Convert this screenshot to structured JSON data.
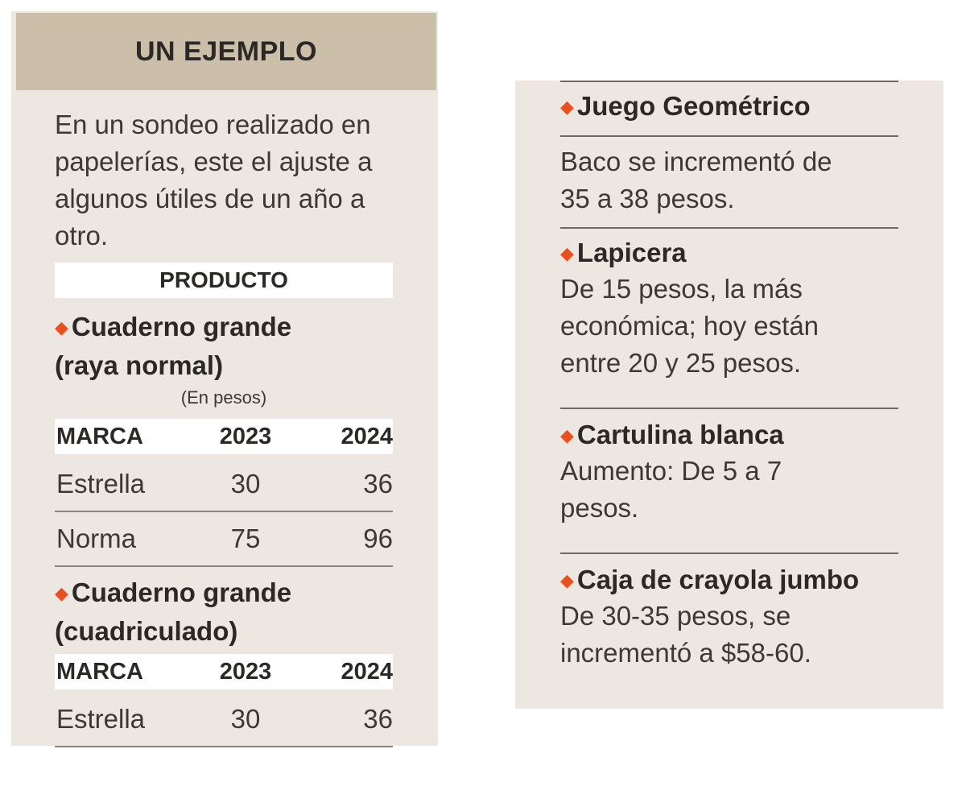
{
  "header": {
    "title": "UN EJEMPLO"
  },
  "intro": {
    "text": "En un sondeo realizado en papelerías, este el ajuste a algunos útiles de un año a otro."
  },
  "product_label": "PRODUCTO",
  "unit_note": "(En pesos)",
  "table_headers": {
    "brand": "MARCA",
    "year1": "2023",
    "year2": "2024"
  },
  "notebook_ruled": {
    "title_line1": "Cuaderno grande",
    "title_line2": "(raya normal)",
    "rows": [
      {
        "brand": "Estrella",
        "y2023": "30",
        "y2024": "36"
      },
      {
        "brand": "Norma",
        "y2023": "75",
        "y2024": "96"
      }
    ]
  },
  "notebook_grid": {
    "title_line1": "Cuaderno grande",
    "title_line2": "(cuadriculado)",
    "rows": [
      {
        "brand": "Estrella",
        "y2023": "30",
        "y2024": "36"
      }
    ]
  },
  "items": [
    {
      "title": "Juego Geométrico",
      "line1": "Baco se incrementó de",
      "line2": "35 a 38 pesos."
    },
    {
      "title": "Lapicera",
      "line1": "De 15 pesos, la más",
      "line2": "económica; hoy están",
      "line3": "entre 20 y 25 pesos."
    },
    {
      "title": "Cartulina blanca",
      "line1": "Aumento: De 5 a 7",
      "line2": "pesos."
    },
    {
      "title": "Caja de crayola jumbo",
      "line1": "De 30-35 pesos, se",
      "line2": "incrementó a $58-60."
    }
  ],
  "colors": {
    "panel": "#ece8e1",
    "header": "#cbbfa9",
    "bullet": "#e8501f"
  }
}
